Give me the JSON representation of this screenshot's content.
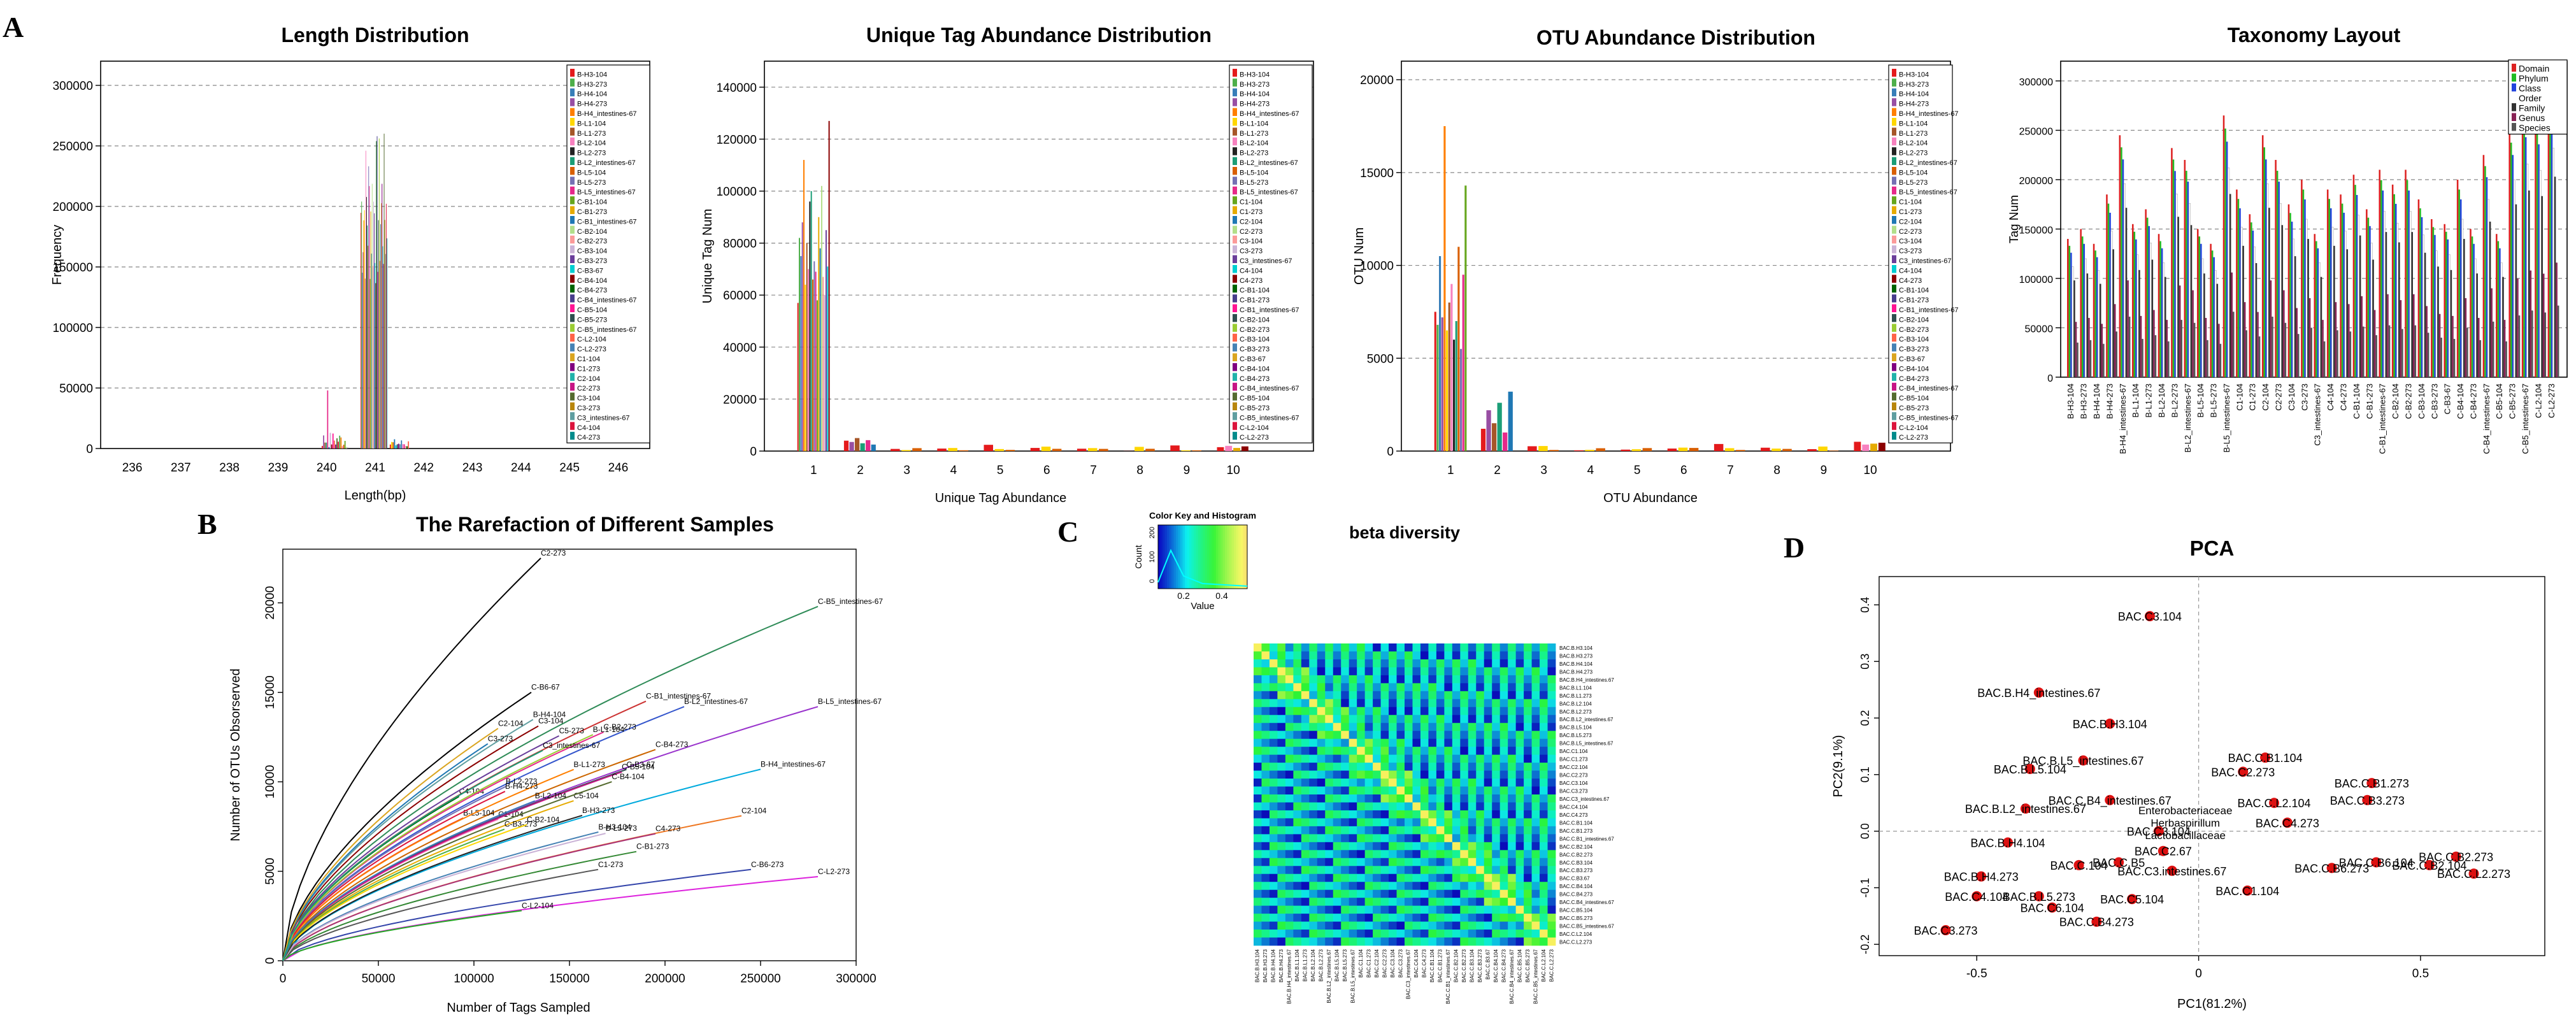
{
  "panel_labels": {
    "a": "A",
    "b": "B",
    "c": "C",
    "d": "D"
  },
  "chart_data": [
    {
      "id": "length",
      "type": "bar",
      "title": "Length Distribution",
      "xlabel": "Length(bp)",
      "ylabel": "Frequency",
      "ylim": [
        0,
        320000
      ],
      "yticks": [
        0,
        50000,
        100000,
        150000,
        200000,
        250000,
        300000
      ],
      "categories": [
        "236",
        "237",
        "238",
        "239",
        "240",
        "241",
        "242",
        "243",
        "244",
        "245",
        "246"
      ],
      "legend_position": "top-right",
      "legend": [
        "B-H3-104",
        "B-H3-273",
        "B-H4-104",
        "B-H4-273",
        "B-H4_intestines-67",
        "B-L1-104",
        "B-L1-273",
        "B-L2-104",
        "B-L2-273",
        "B-L2_intestines-67",
        "B-L5-104",
        "B-L5-273",
        "B-L5_intestines-67",
        "C-B1-104",
        "C-B1-273",
        "C-B1_intestines-67",
        "C-B2-104",
        "C-B2-273",
        "C-B3-104",
        "C-B3-273",
        "C-B3-67",
        "C-B4-104",
        "C-B4-273",
        "C-B4_intestines-67",
        "C-B5-104",
        "C-B5-273",
        "C-B5_intestines-67",
        "C-L2-104",
        "C-L2-273",
        "C1-104",
        "C1-273",
        "C2-104",
        "C2-273",
        "C3-104",
        "C3-273",
        "C3_intestines-67",
        "C4-104",
        "C4-273"
      ],
      "series_summary": {
        "category": "241",
        "max": 262000,
        "min": 130000,
        "near_240_max": 48000
      }
    },
    {
      "id": "unique_tag",
      "type": "bar",
      "title": "Unique Tag Abundance Distribution",
      "xlabel": "Unique Tag Abundance",
      "ylabel": "Unique Tag Num",
      "ylim": [
        0,
        150000
      ],
      "yticks": [
        0,
        20000,
        40000,
        60000,
        80000,
        100000,
        120000,
        140000
      ],
      "categories": [
        "1",
        "2",
        "3",
        "4",
        "5",
        "6",
        "7",
        "8",
        "9",
        "10"
      ],
      "legend_position": "top-right",
      "legend": [
        "B-H3-104",
        "B-H3-273",
        "B-H4-104",
        "B-H4-273",
        "B-H4_intestines-67",
        "B-L1-104",
        "B-L1-273",
        "B-L2-104",
        "B-L2-273",
        "B-L2_intestines-67",
        "B-L5-104",
        "B-L5-273",
        "B-L5_intestines-67",
        "C1-104",
        "C1-273",
        "C2-104",
        "C2-273",
        "C3-104",
        "C3-273",
        "C3_intestines-67",
        "C4-104",
        "C4-273",
        "C-B1-104",
        "C-B1-273",
        "C-B1_intestines-67",
        "C-B2-104",
        "C-B2-273",
        "C-B3-104",
        "C-B3-273",
        "C-B3-67",
        "C-B4-104",
        "C-B4-273",
        "C-B4_intestines-67",
        "C-B5-104",
        "C-B5-273",
        "C-B5_intestines-67",
        "C-L2-104",
        "C-L2-273"
      ],
      "values_at_1": [
        57000,
        82000,
        75000,
        88000,
        112000,
        64000,
        80000,
        70000,
        96000,
        100000,
        66000,
        73000,
        69000,
        58000,
        90000,
        78000,
        102000,
        67000,
        60000,
        85000,
        71000,
        127000
      ],
      "values_at_2": [
        4000,
        3500,
        5000,
        3000,
        4200,
        2500
      ],
      "values_at_10": [
        1500,
        2000,
        1200,
        1800
      ]
    },
    {
      "id": "otu",
      "type": "bar",
      "title": "OTU Abundance Distribution",
      "xlabel": "OTU Abundance",
      "ylabel": "OTU Num",
      "ylim": [
        0,
        21000
      ],
      "yticks": [
        0,
        5000,
        10000,
        15000,
        20000
      ],
      "categories": [
        "1",
        "2",
        "3",
        "4",
        "5",
        "6",
        "7",
        "8",
        "9",
        "10"
      ],
      "legend_position": "top-right",
      "legend": [
        "B-H3-104",
        "B-H3-273",
        "B-H4-104",
        "B-H4-273",
        "B-H4_intestines-67",
        "B-L1-104",
        "B-L1-273",
        "B-L2-104",
        "B-L2-273",
        "B-L2_intestines-67",
        "B-L5-104",
        "B-L5-273",
        "B-L5_intestines-67",
        "C1-104",
        "C1-273",
        "C2-104",
        "C2-273",
        "C3-104",
        "C3-273",
        "C3_intestines-67",
        "C4-104",
        "C4-273",
        "C-B1-104",
        "C-B1-273",
        "C-B1_intestines-67",
        "C-B2-104",
        "C-B2-273",
        "C-B3-104",
        "C-B3-273",
        "C-B3-67",
        "C-B4-104",
        "C-B4-273",
        "C-B4_intestines-67",
        "C-B5-104",
        "C-B5-273",
        "C-B5_intestines-67",
        "C-L2-104",
        "C-L2-273"
      ],
      "values_at_1": [
        7500,
        6800,
        10500,
        7200,
        17500,
        6500,
        8000,
        9000,
        6000,
        7000,
        11000,
        5500,
        9500,
        14300
      ],
      "values_at_2": [
        1200,
        2200,
        1500,
        2600,
        1000,
        3200
      ],
      "values_at_10": [
        500,
        350,
        400,
        450
      ]
    },
    {
      "id": "taxonomy",
      "type": "bar",
      "title": "Taxonomy Layout",
      "ylabel": "Tag Num",
      "ylim": [
        0,
        320000
      ],
      "yticks": [
        0,
        50000,
        100000,
        150000,
        200000,
        250000,
        300000
      ],
      "legend_position": "top-right",
      "legend": [
        "Domain",
        "Phylum",
        "Class",
        "Order",
        "Family",
        "Genus",
        "Species"
      ],
      "legend_colors": [
        "#dd2222",
        "#22bb22",
        "#2244dd",
        "#ffffff",
        "#333333",
        "#882255",
        "#555555"
      ],
      "categories": [
        "B-H3-104",
        "B-H3-273",
        "B-H4-104",
        "B-H4-273",
        "B-H4_intestines-67",
        "B-L1-104",
        "B-L1-273",
        "B-L2-104",
        "B-L2-273",
        "B-L2_intestines-67",
        "B-L5-104",
        "B-L5-273",
        "B-L5_intestines-67",
        "C1-104",
        "C1-273",
        "C2-104",
        "C2-273",
        "C3-104",
        "C3-273",
        "C3_intestines-67",
        "C4-104",
        "C4-273",
        "C-B1-104",
        "C-B1-273",
        "C-B1_intestines-67",
        "C-B2-104",
        "C-B2-273",
        "C-B3-104",
        "C-B3-273",
        "C-B3-67",
        "C-B4-104",
        "C-B4-273",
        "C-B4_intestines-67",
        "C-B5-104",
        "C-B5-273",
        "C-B5_intestines-67",
        "C-L2-104",
        "C-L2-273"
      ],
      "domain_values": [
        140000,
        150000,
        135000,
        185000,
        245000,
        155000,
        170000,
        145000,
        232000,
        220000,
        150000,
        135000,
        265000,
        190000,
        165000,
        245000,
        220000,
        175000,
        200000,
        145000,
        190000,
        185000,
        205000,
        170000,
        210000,
        195000,
        210000,
        180000,
        160000,
        155000,
        200000,
        150000,
        225000,
        145000,
        250000,
        270000,
        262000,
        290000
      ]
    },
    {
      "id": "rarefaction",
      "type": "line",
      "title": "The Rarefaction of Different Samples",
      "xlabel": "Number of Tags Sampled",
      "ylabel": "Number of OTUs Obsorserved",
      "xlim": [
        0,
        300000
      ],
      "ylim": [
        0,
        23000
      ],
      "xticks": [
        0,
        50000,
        100000,
        150000,
        200000,
        250000,
        300000
      ],
      "yticks": [
        0,
        5000,
        10000,
        15000,
        20000
      ],
      "series": [
        {
          "name": "C2-273",
          "max_x": 135000,
          "max_y": 22500,
          "color": "#000000"
        },
        {
          "name": "C-B5_intestines-67",
          "max_x": 280000,
          "max_y": 19800,
          "color": "#2e8b57"
        },
        {
          "name": "C-B6-67",
          "max_x": 130000,
          "max_y": 15000,
          "color": "#000000"
        },
        {
          "name": "C-B1_intestines-67",
          "max_x": 190000,
          "max_y": 14500,
          "color": "#cc3333"
        },
        {
          "name": "B-L2_intestines-67",
          "max_x": 210000,
          "max_y": 14200,
          "color": "#3355cc"
        },
        {
          "name": "B-L5_intestines-67",
          "max_x": 280000,
          "max_y": 14200,
          "color": "#9933cc"
        },
        {
          "name": "C-B4-273",
          "max_x": 195000,
          "max_y": 11800,
          "color": "#cc6600"
        },
        {
          "name": "B-H4_intestines-67",
          "max_x": 250000,
          "max_y": 10700,
          "color": "#00aadd"
        },
        {
          "name": "C2-104",
          "max_x": 240000,
          "max_y": 8100,
          "color": "#ee7722"
        },
        {
          "name": "C4-273",
          "max_x": 195000,
          "max_y": 7100,
          "color": "#aa3377"
        },
        {
          "name": "C-B1-273",
          "max_x": 185000,
          "max_y": 6100,
          "color": "#338833"
        },
        {
          "name": "C1-273",
          "max_x": 165000,
          "max_y": 5100,
          "color": "#555555"
        },
        {
          "name": "C-B6-273",
          "max_x": 245000,
          "max_y": 5100,
          "color": "#3344aa"
        },
        {
          "name": "C-L2-273",
          "max_x": 280000,
          "max_y": 4700,
          "color": "#dd22dd"
        },
        {
          "name": "C-L2-104",
          "max_x": 125000,
          "max_y": 2800,
          "color": "#22aa22"
        }
      ],
      "other_labels": [
        "B-L5-104",
        "C1-104",
        "C5-104",
        "C3-104",
        "B-H3-104",
        "B-H4-104",
        "B-L1-273",
        "B-L2-273",
        "B-L5-273",
        "C-B3-67",
        "C-B5-104",
        "C-B3-273",
        "B-H3-273",
        "C3-273",
        "C4-104",
        "C2-104",
        "B-H4-273",
        "C-B2-104",
        "C-B2-273",
        "C5-273",
        "B-L1-104",
        "C-B4-104",
        "B-L2-104",
        "C3_intestines-67"
      ]
    },
    {
      "id": "beta",
      "type": "heatmap",
      "title": "beta diversity",
      "color_key_title": "Color Key and Histogram",
      "color_key_ylabel": "Count",
      "color_key_xlabel": "Value",
      "color_key_ticks": [
        "0.2",
        "0.4"
      ],
      "color_key_yticks": [
        "0",
        "100",
        "200"
      ],
      "value_range": [
        0,
        0.5
      ],
      "labels": [
        "BAC.B.H3.104",
        "BAC.B.H3.273",
        "BAC.B.H4.104",
        "BAC.B.H4.273",
        "BAC.B.H4_intestines.67",
        "BAC.B.L1.104",
        "BAC.B.L1.273",
        "BAC.B.L2.104",
        "BAC.B.L2.273",
        "BAC.B.L2_intestines.67",
        "BAC.B.L5.104",
        "BAC.B.L5.273",
        "BAC.B.L5_intestines.67",
        "BAC.C1.104",
        "BAC.C1.273",
        "BAC.C2.104",
        "BAC.C2.273",
        "BAC.C3.104",
        "BAC.C3.273",
        "BAC.C3_intestines.67",
        "BAC.C4.104",
        "BAC.C4.273",
        "BAC.C.B1.104",
        "BAC.C.B1.273",
        "BAC.C.B1_intestines.67",
        "BAC.C.B2.104",
        "BAC.C.B2.273",
        "BAC.C.B3.104",
        "BAC.C.B3.273",
        "BAC.C.B3.67",
        "BAC.C.B4.104",
        "BAC.C.B4.273",
        "BAC.C.B4_intestines.67",
        "BAC.C.B5.104",
        "BAC.C.B5.273",
        "BAC.C.B5_intestines.67",
        "BAC.C.L2.104",
        "BAC.C.L2.273"
      ]
    },
    {
      "id": "pca",
      "type": "scatter",
      "title": "PCA",
      "xlabel": "PC1(81.2%)",
      "ylabel": "PC2(9.1%)",
      "xlim": [
        -0.72,
        0.78
      ],
      "ylim": [
        -0.22,
        0.45
      ],
      "xticks": [
        -0.5,
        0.0,
        0.5
      ],
      "yticks": [
        -0.2,
        -0.1,
        0.0,
        0.1,
        0.2,
        0.3,
        0.4
      ],
      "points": [
        {
          "label": "BAC.C3.104",
          "x": -0.11,
          "y": 0.38
        },
        {
          "label": "BAC.B.H4_intestines.67",
          "x": -0.36,
          "y": 0.245
        },
        {
          "label": "BAC.B.H3.104",
          "x": -0.2,
          "y": 0.19
        },
        {
          "label": "BAC.B.L5_intestines.67",
          "x": -0.26,
          "y": 0.125
        },
        {
          "label": "BAC.B.L5.104",
          "x": -0.38,
          "y": 0.11
        },
        {
          "label": "BAC.C.B4_intestines.67",
          "x": -0.2,
          "y": 0.055
        },
        {
          "label": "BAC.B.L2_intestines.67",
          "x": -0.39,
          "y": 0.04
        },
        {
          "label": "BAC.C.B1.104",
          "x": 0.15,
          "y": 0.13
        },
        {
          "label": "BAC.C2.273",
          "x": 0.1,
          "y": 0.105
        },
        {
          "label": "BAC.C.B1.273",
          "x": 0.39,
          "y": 0.085
        },
        {
          "label": "BAC.C.B3.273",
          "x": 0.38,
          "y": 0.055
        },
        {
          "label": "BAC.C.L2.104",
          "x": 0.17,
          "y": 0.05
        },
        {
          "label": "BAC.C4.273",
          "x": 0.2,
          "y": 0.015
        },
        {
          "label": "BAC.C3.104",
          "x": -0.09,
          "y": 0.0
        },
        {
          "label": "BAC.B.H4.104",
          "x": -0.43,
          "y": -0.02
        },
        {
          "label": "BAC.C.B5",
          "x": -0.18,
          "y": -0.055
        },
        {
          "label": "BAC.C.104",
          "x": -0.27,
          "y": -0.06
        },
        {
          "label": "BAC.C2.67",
          "x": -0.08,
          "y": -0.035
        },
        {
          "label": "BAC.C3.intestines.67",
          "x": -0.06,
          "y": -0.07
        },
        {
          "label": "BAC.B.H4.273",
          "x": -0.49,
          "y": -0.08
        },
        {
          "label": "BAC.C1.104",
          "x": 0.11,
          "y": -0.105
        },
        {
          "label": "BAC.C4.104",
          "x": -0.5,
          "y": -0.115
        },
        {
          "label": "BAC.B.L5.273",
          "x": -0.36,
          "y": -0.115
        },
        {
          "label": "BAC.C5.104",
          "x": -0.15,
          "y": -0.12
        },
        {
          "label": "BAC.C6.104",
          "x": -0.33,
          "y": -0.135
        },
        {
          "label": "BAC.C3.273",
          "x": -0.57,
          "y": -0.175
        },
        {
          "label": "BAC.C.B4.273",
          "x": -0.23,
          "y": -0.16
        },
        {
          "label": "BAC.C.L2.273",
          "x": 0.62,
          "y": -0.075
        },
        {
          "label": "BAC.C.B2.273",
          "x": 0.58,
          "y": -0.045
        },
        {
          "label": "BAC.C.B6.104",
          "x": 0.4,
          "y": -0.055
        },
        {
          "label": "BAC.C.B6.273",
          "x": 0.3,
          "y": -0.065
        },
        {
          "label": "BAC.C.B2.104",
          "x": 0.52,
          "y": -0.06
        }
      ],
      "cluster_labels": [
        "Enterobacteriaceae",
        "Herbaspirillum",
        "Lactobacillaceae"
      ]
    }
  ]
}
